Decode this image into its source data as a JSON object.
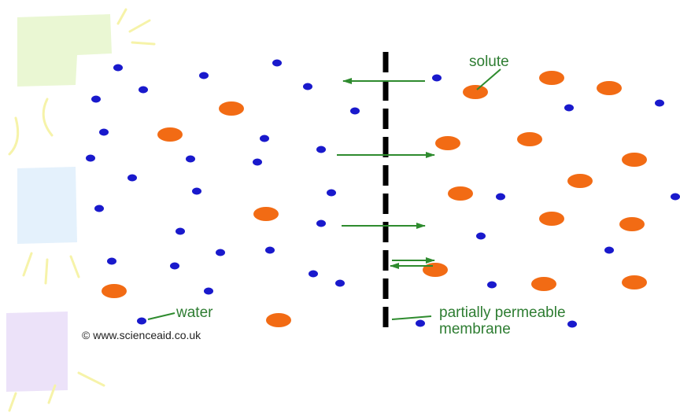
{
  "labels": {
    "solute": "solute",
    "water": "water",
    "membrane_line1": "partially permeable",
    "membrane_line2": "membrane",
    "copyright": "© www.scienceaid.co.uk"
  },
  "colors": {
    "water": "#1919cc",
    "solute": "#f26b14",
    "arrow": "#2e8b2e",
    "membrane": "#000000",
    "deco_green": "#eaf7d3",
    "deco_blue": "#e4f1fc",
    "deco_purple": "#ece2f9",
    "deco_yellow": "#f6f3a9"
  },
  "icons": {
    "water_molecule": "small-blue-dot",
    "solute_molecule": "orange-dot",
    "membrane": "dashed-vertical-line"
  }
}
